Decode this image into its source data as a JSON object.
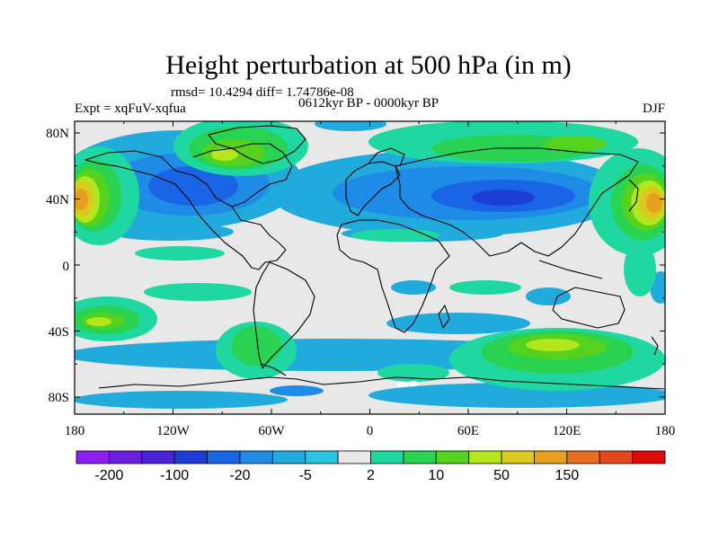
{
  "title": "Height perturbation at 500 hPa (in m)",
  "stats": "rmsd= 10.4294 diff= 1.74786e-08",
  "period": "0612kyr BP - 0000kyr BP",
  "expt": "Expt = xqFuV-xqfua",
  "season": "DJF",
  "lat_labels": [
    "80N",
    "40N",
    "0",
    "40S",
    "80S"
  ],
  "lon_labels": [
    "180",
    "120W",
    "60W",
    "0",
    "60E",
    "120E",
    "180"
  ],
  "colorbar": {
    "colors": [
      "#8c1eef",
      "#6a1fe0",
      "#4a22d8",
      "#1e3cd6",
      "#1a64e6",
      "#1e8ce6",
      "#21aadc",
      "#2ac4e0",
      "#e8e8e8",
      "#1fd7a0",
      "#2ad252",
      "#55d21e",
      "#b4e61e",
      "#dcc81e",
      "#e6a01e",
      "#e66e1e",
      "#e6461e",
      "#dc0a0a"
    ],
    "labels": [
      "-200",
      "-100",
      "-20",
      "-5",
      "2",
      "10",
      "50",
      "150"
    ]
  }
}
